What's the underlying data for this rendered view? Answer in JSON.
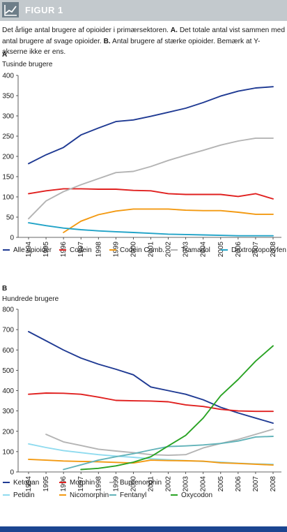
{
  "figure": {
    "title": "FIGUR 1",
    "caption_text": "Det årlige antal brugere af opioider i primærsektoren. ",
    "caption_a_label": "A.",
    "caption_a_text": " Det totale antal vist sammen med antal brugere af svage opioider. ",
    "caption_b_label": "B.",
    "caption_b_text": " Antal brugere af stærke opioider. Bemærk at Y-akserne ikke er ens."
  },
  "colors": {
    "header_bg": "#c3c9cd",
    "footer_bar": "#1b4590"
  },
  "chart_data": [
    {
      "panel": "A",
      "type": "line",
      "ylabel": "Tusinde brugere",
      "ylim": [
        0,
        400
      ],
      "yticks": [
        0,
        50,
        100,
        150,
        200,
        250,
        300,
        350,
        400
      ],
      "x": [
        "1994",
        "1995",
        "1996",
        "1997",
        "1998",
        "1999",
        "2000",
        "2001",
        "2002",
        "2003",
        "2004",
        "2005",
        "2006",
        "2007",
        "2008"
      ],
      "legend_placement": "bottom",
      "series": [
        {
          "name": "Alle opioider",
          "color": "#1f3a93",
          "values": [
            182,
            204,
            222,
            253,
            270,
            286,
            290,
            299,
            309,
            319,
            333,
            349,
            361,
            369,
            372
          ]
        },
        {
          "name": "Codein",
          "color": "#e0201f",
          "values": [
            108,
            115,
            120,
            120,
            119,
            119,
            116,
            115,
            108,
            106,
            106,
            106,
            101,
            108,
            95
          ]
        },
        {
          "name": "Codein Comb.",
          "color": "#f39a12",
          "values": [
            null,
            null,
            12,
            40,
            56,
            65,
            70,
            70,
            70,
            67,
            66,
            66,
            62,
            57,
            57
          ]
        },
        {
          "name": "Tramadol",
          "color": "#b4b4b4",
          "values": [
            46,
            90,
            113,
            130,
            145,
            160,
            163,
            175,
            190,
            203,
            215,
            228,
            238,
            245,
            245
          ]
        },
        {
          "name": "Dextropropoxyfen",
          "color": "#21a3c7",
          "values": [
            36,
            29,
            23,
            19,
            16,
            14,
            12,
            10,
            8,
            7,
            6,
            5,
            4,
            4,
            4
          ]
        }
      ]
    },
    {
      "panel": "B",
      "type": "line",
      "ylabel": "Hundrede brugere",
      "ylim": [
        0,
        800
      ],
      "yticks": [
        0,
        100,
        200,
        300,
        400,
        500,
        600,
        700,
        800
      ],
      "x": [
        "1994",
        "1995",
        "1996",
        "1997",
        "1998",
        "1999",
        "2000",
        "2001",
        "2002",
        "2003",
        "2004",
        "2005",
        "2006",
        "2007",
        "2008"
      ],
      "legend_placement": "bottom",
      "series": [
        {
          "name": "Ketogan",
          "color": "#1f3a93",
          "values": [
            690,
            645,
            600,
            560,
            530,
            505,
            478,
            418,
            400,
            382,
            355,
            318,
            290,
            265,
            240
          ]
        },
        {
          "name": "Morphin",
          "color": "#e0201f",
          "values": [
            382,
            388,
            387,
            382,
            368,
            352,
            350,
            349,
            345,
            330,
            322,
            308,
            300,
            298,
            298
          ]
        },
        {
          "name": "Buprenorphin",
          "color": "#b4b4b4",
          "values": [
            null,
            185,
            148,
            130,
            112,
            103,
            95,
            85,
            82,
            85,
            118,
            140,
            160,
            185,
            210
          ]
        },
        {
          "name": "Petidin",
          "color": "#8fdbef",
          "values": [
            138,
            120,
            105,
            95,
            85,
            78,
            72,
            65,
            60,
            56,
            52,
            48,
            43,
            40,
            38
          ]
        },
        {
          "name": "Nicomorphin",
          "color": "#f39a12",
          "values": [
            62,
            58,
            54,
            52,
            50,
            47,
            44,
            58,
            56,
            55,
            53,
            45,
            42,
            38,
            34
          ]
        },
        {
          "name": "Fentanyl",
          "color": "#62b3b9",
          "values": [
            null,
            null,
            12,
            35,
            58,
            75,
            90,
            108,
            125,
            128,
            133,
            140,
            152,
            172,
            175
          ]
        },
        {
          "name": "Oxycodon",
          "color": "#2aa324",
          "values": [
            null,
            null,
            null,
            12,
            18,
            30,
            48,
            75,
            128,
            180,
            265,
            375,
            455,
            545,
            620
          ]
        }
      ]
    }
  ]
}
